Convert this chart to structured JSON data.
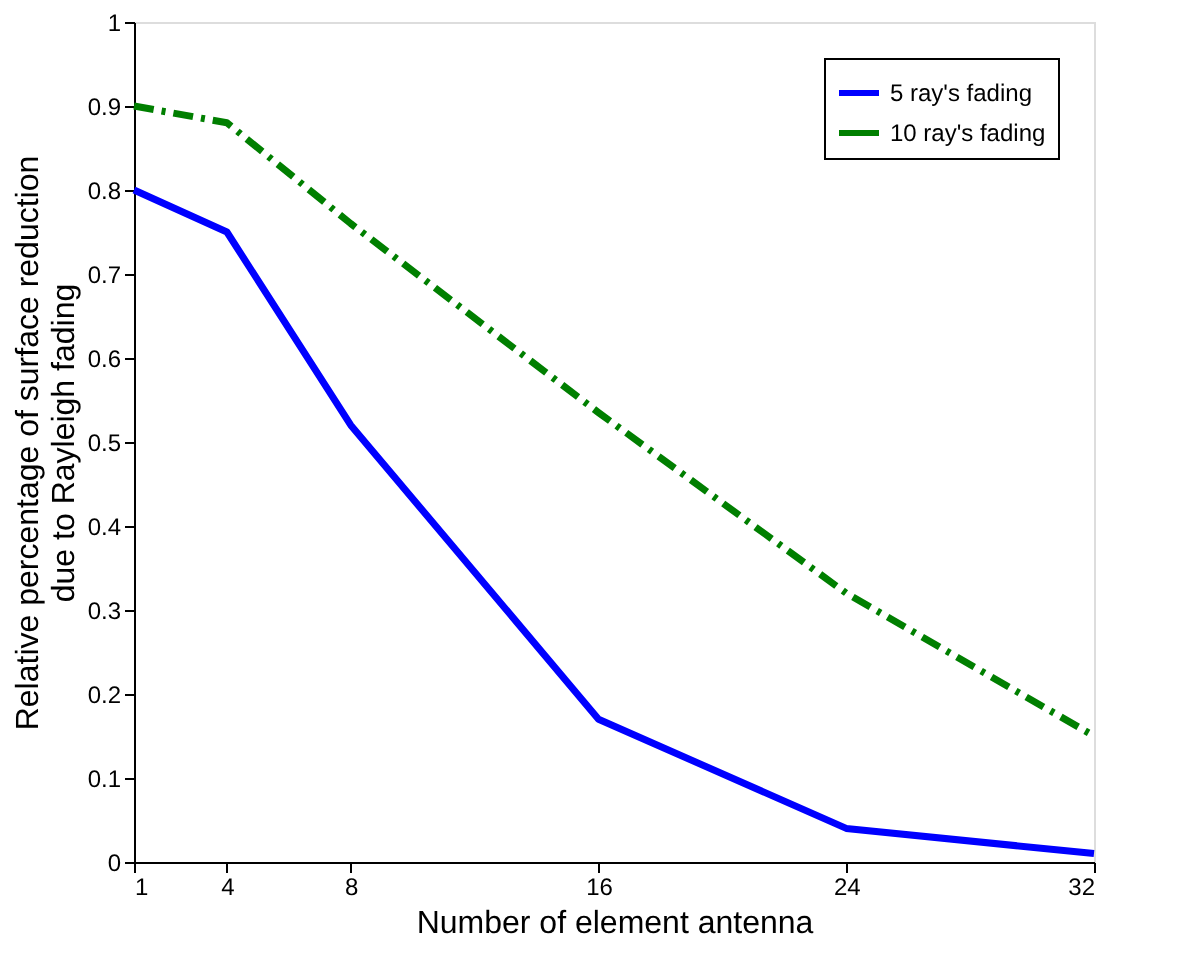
{
  "chart_data": {
    "type": "line",
    "xlabel": "Number of element antenna",
    "ylabel": "Relative percentage of surface reduction\ndue to Rayleigh fading",
    "x": [
      1,
      4,
      8,
      16,
      24,
      32
    ],
    "series": [
      {
        "name": "5 ray's fading",
        "color": "#0000ff",
        "line_style": "solid",
        "values": [
          0.8,
          0.75,
          0.52,
          0.17,
          0.04,
          0.01
        ]
      },
      {
        "name": "10 ray's fading",
        "color": "#007f00",
        "line_style": "dashed",
        "values": [
          0.9,
          0.88,
          0.76,
          0.535,
          0.32,
          0.15
        ]
      }
    ],
    "xlim": [
      1,
      32
    ],
    "xticks": [
      1,
      4,
      8,
      16,
      24,
      32
    ],
    "ylim": [
      0,
      1
    ],
    "yticks": [
      0,
      0.1,
      0.2,
      0.3,
      0.4,
      0.5,
      0.6,
      0.7,
      0.8,
      0.9,
      1
    ],
    "grid": false,
    "legend": "top right",
    "marker": "none"
  }
}
